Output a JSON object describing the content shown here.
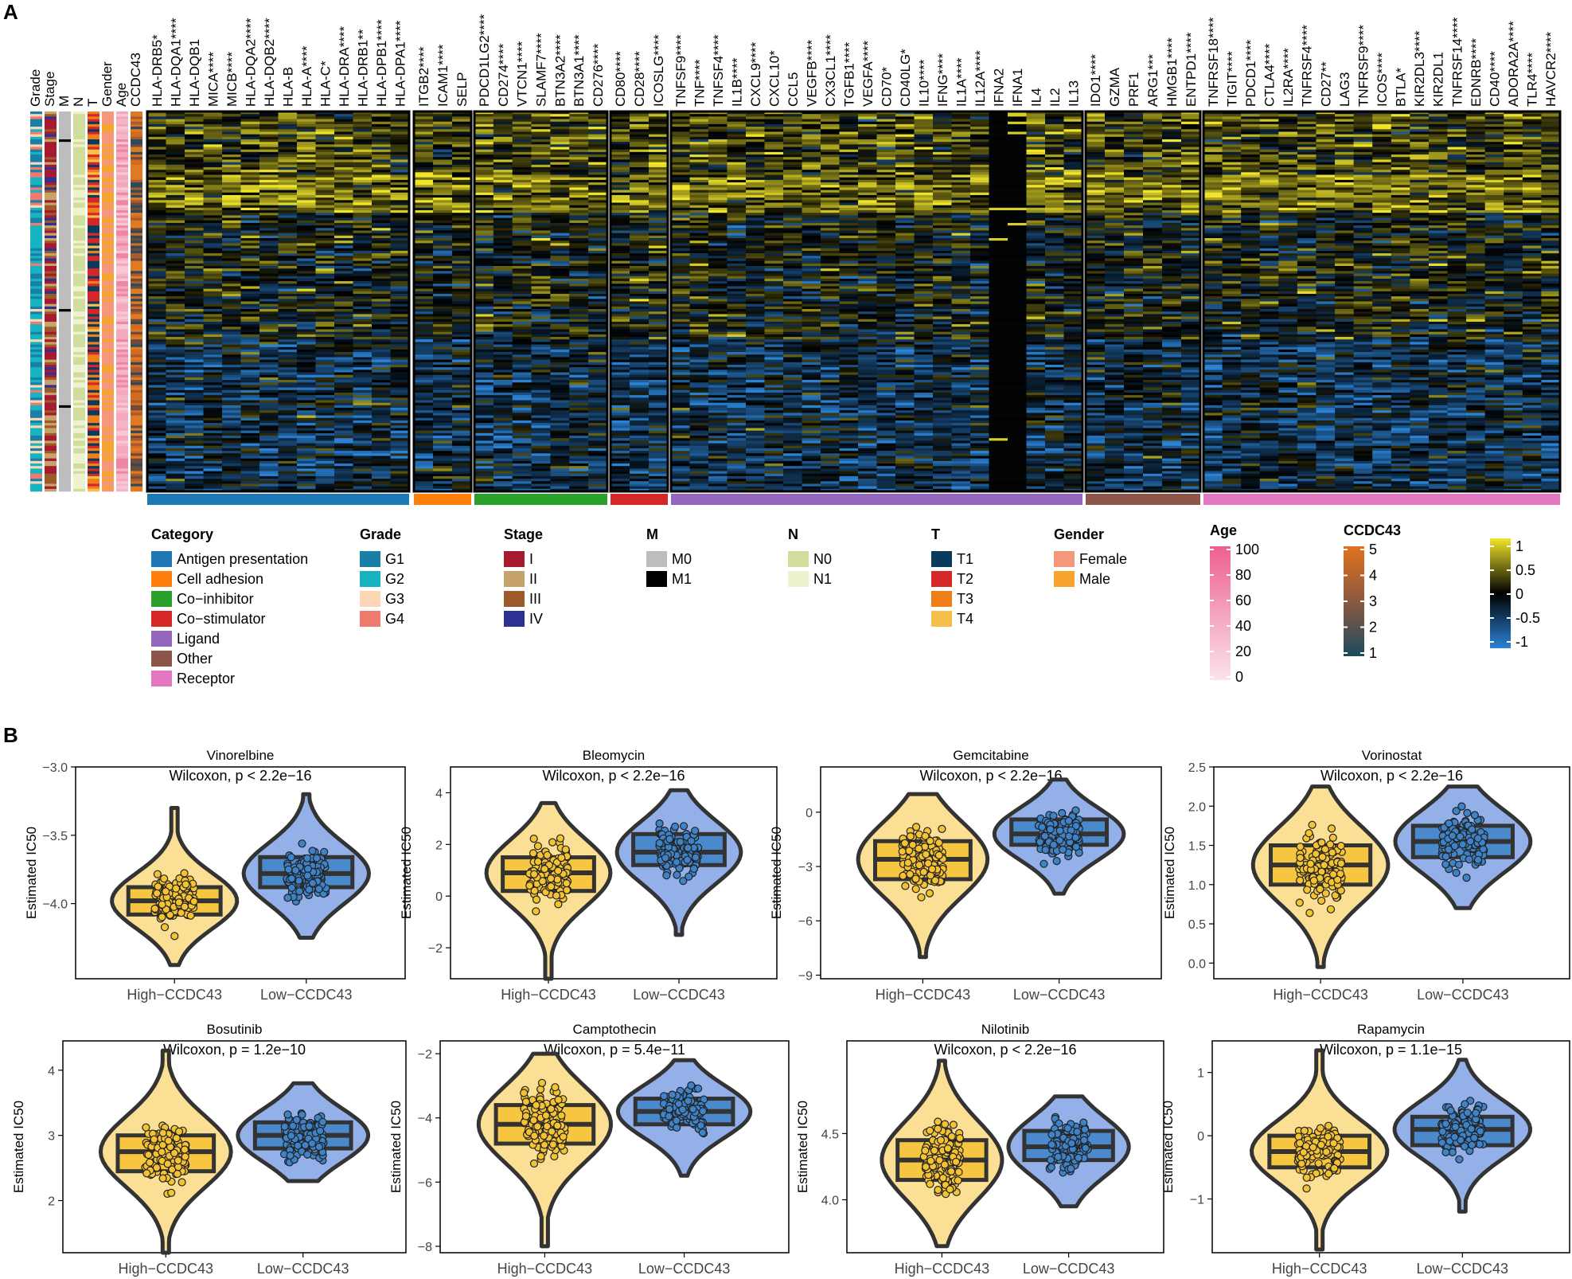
{
  "panels": {
    "a": "A",
    "b": "B"
  },
  "heatmap": {
    "annotation_tracks": [
      "Grade",
      "Stage",
      "M",
      "N",
      "T",
      "Gender",
      "Age",
      "CCDC43"
    ],
    "groups": [
      {
        "category": "Antigen presentation",
        "color": "#1f77b4",
        "genes": [
          "HLA-DRB5*",
          "HLA-DQA1****",
          "HLA-DQB1",
          "MICA****",
          "MICB****",
          "HLA-DQA2****",
          "HLA-DQB2****",
          "HLA-B",
          "HLA-A****",
          "HLA-C*",
          "HLA-DRA****",
          "HLA-DRB1**",
          "HLA-DPB1****",
          "HLA-DPA1****"
        ]
      },
      {
        "category": "Cell adhesion",
        "color": "#ff7f0e",
        "genes": [
          "ITGB2****",
          "ICAM1****",
          "SELP"
        ]
      },
      {
        "category": "Co-inhibitor",
        "color": "#2ca02c",
        "genes": [
          "PDCD1LG2****",
          "CD274****",
          "VTCN1****",
          "SLAMF7****",
          "BTN3A2****",
          "BTN3A1****",
          "CD276****"
        ]
      },
      {
        "category": "Co-stimulator",
        "color": "#d62728",
        "genes": [
          "CD80****",
          "CD28****",
          "ICOSLG****"
        ]
      },
      {
        "category": "Ligand",
        "color": "#9467bd",
        "genes": [
          "TNFSF9****",
          "TNF****",
          "TNFSF4****",
          "IL1B****",
          "CXCL9****",
          "CXCL10*",
          "CCL5",
          "VEGFB****",
          "CX3CL1****",
          "TGFB1****",
          "VEGFA****",
          "CD70*",
          "CD40LG*",
          "IL10****",
          "IFNG****",
          "IL1A****",
          "IL12A****",
          "IFNA2",
          "IFNA1",
          "IL4",
          "IL2",
          "IL13"
        ]
      },
      {
        "category": "Other",
        "color": "#8c564b",
        "genes": [
          "IDO1****",
          "GZMA",
          "PRF1",
          "ARG1***",
          "HMGB1****",
          "ENTPD1****"
        ]
      },
      {
        "category": "Receptor",
        "color": "#e377c2",
        "genes": [
          "TNFRSF18****",
          "TIGIT****",
          "PDCD1****",
          "CTLA4****",
          "IL2RA****",
          "TNFRSF4****",
          "CD27**",
          "LAG3",
          "TNFRSF9****",
          "ICOS****",
          "BTLA*",
          "KIR2DL3****",
          "KIR2DL1",
          "TNFRSF14****",
          "EDNRB****",
          "CD40****",
          "ADORA2A****",
          "TLR4****",
          "HAVCR2****"
        ]
      }
    ],
    "value_scale": {
      "ticks": [
        "1",
        "0.5",
        "0",
        "-0.5",
        "-1"
      ],
      "colors": [
        "#2b83d6",
        "#000000",
        "#f0e52b"
      ]
    }
  },
  "legends": {
    "category": {
      "title": "Category",
      "items": [
        {
          "label": "Antigen presentation",
          "color": "#1f77b4"
        },
        {
          "label": "Cell adhesion",
          "color": "#ff7f0e"
        },
        {
          "label": "Co−inhibitor",
          "color": "#2ca02c"
        },
        {
          "label": "Co−stimulator",
          "color": "#d62728"
        },
        {
          "label": "Ligand",
          "color": "#9467bd"
        },
        {
          "label": "Other",
          "color": "#8c564b"
        },
        {
          "label": "Receptor",
          "color": "#e377c2"
        }
      ]
    },
    "grade": {
      "title": "Grade",
      "items": [
        {
          "label": "G1",
          "color": "#1a7fa6"
        },
        {
          "label": "G2",
          "color": "#17b3c1"
        },
        {
          "label": "G3",
          "color": "#fdd6b5"
        },
        {
          "label": "G4",
          "color": "#ef7b6e"
        }
      ]
    },
    "stage": {
      "title": "Stage",
      "items": [
        {
          "label": "I",
          "color": "#a6192e"
        },
        {
          "label": "II",
          "color": "#c8a26b"
        },
        {
          "label": "III",
          "color": "#9c5a2a"
        },
        {
          "label": "IV",
          "color": "#2e3192"
        }
      ]
    },
    "m": {
      "title": "M",
      "items": [
        {
          "label": "M0",
          "color": "#bdbdbd"
        },
        {
          "label": "M1",
          "color": "#000000"
        }
      ]
    },
    "n": {
      "title": "N",
      "items": [
        {
          "label": "N0",
          "color": "#d1dd9a"
        },
        {
          "label": "N1",
          "color": "#eef2cf"
        }
      ]
    },
    "t": {
      "title": "T",
      "items": [
        {
          "label": "T1",
          "color": "#0b3a5c"
        },
        {
          "label": "T2",
          "color": "#d62728"
        },
        {
          "label": "T3",
          "color": "#f07f1a"
        },
        {
          "label": "T4",
          "color": "#f5c04a"
        }
      ]
    },
    "gender": {
      "title": "Gender",
      "items": [
        {
          "label": "Female",
          "color": "#f5977a"
        },
        {
          "label": "Male",
          "color": "#f7a42e"
        }
      ]
    },
    "age": {
      "title": "Age",
      "ticks": [
        "100",
        "80",
        "60",
        "40",
        "20",
        "0"
      ]
    },
    "ccdc43": {
      "title": "CCDC43",
      "ticks": [
        "5",
        "4",
        "3",
        "2",
        "1"
      ]
    }
  },
  "chart_data": [
    {
      "type": "violin",
      "title": "Vinorelbine",
      "annotation": "Wilcoxon, p < 2.2e−16",
      "ylabel": "Estimated IC50",
      "xlabel": "",
      "categories": [
        "High−CCDC43",
        "Low−CCDC43"
      ],
      "ylim": [
        -4.55,
        -3.0
      ],
      "yticks": [
        -3.0,
        -3.5,
        -4.0
      ],
      "ytick_labels": [
        "−3.0",
        "−3.5",
        "−4.0"
      ],
      "series": [
        {
          "name": "High−CCDC43",
          "color": "#f5c232",
          "min": -4.45,
          "q1": -4.08,
          "median": -3.98,
          "q3": -3.88,
          "max": -3.3
        },
        {
          "name": "Low−CCDC43",
          "color": "#3e82c8",
          "min": -4.25,
          "q1": -3.88,
          "median": -3.78,
          "q3": -3.66,
          "max": -3.2
        }
      ]
    },
    {
      "type": "violin",
      "title": "Bleomycin",
      "annotation": "Wilcoxon, p < 2.2e−16",
      "ylabel": "Estimated IC50",
      "xlabel": "",
      "categories": [
        "High−CCDC43",
        "Low−CCDC43"
      ],
      "ylim": [
        -3.2,
        5.0
      ],
      "yticks": [
        4,
        2,
        0,
        -2
      ],
      "ytick_labels": [
        "4",
        "2",
        "0",
        "−2"
      ],
      "series": [
        {
          "name": "High−CCDC43",
          "color": "#f5c232",
          "min": -3.2,
          "q1": 0.2,
          "median": 0.9,
          "q3": 1.5,
          "max": 3.6
        },
        {
          "name": "Low−CCDC43",
          "color": "#3e82c8",
          "min": -1.5,
          "q1": 1.2,
          "median": 1.7,
          "q3": 2.4,
          "max": 4.1
        }
      ]
    },
    {
      "type": "violin",
      "title": "Gemcitabine",
      "annotation": "Wilcoxon, p < 2.2e−16",
      "ylabel": "Estimated IC50",
      "xlabel": "",
      "categories": [
        "High−CCDC43",
        "Low−CCDC43"
      ],
      "ylim": [
        -9.2,
        2.5
      ],
      "yticks": [
        0,
        -3,
        -6,
        -9
      ],
      "ytick_labels": [
        "0",
        "−3",
        "−6",
        "−9"
      ],
      "series": [
        {
          "name": "High−CCDC43",
          "color": "#f5c232",
          "min": -8.0,
          "q1": -3.7,
          "median": -2.6,
          "q3": -1.6,
          "max": 1.0
        },
        {
          "name": "Low−CCDC43",
          "color": "#3e82c8",
          "min": -4.5,
          "q1": -1.8,
          "median": -1.2,
          "q3": -0.4,
          "max": 1.8
        }
      ]
    },
    {
      "type": "violin",
      "title": "Vorinostat",
      "annotation": "Wilcoxon, p < 2.2e−16",
      "ylabel": "Estimated IC50",
      "xlabel": "",
      "categories": [
        "High−CCDC43",
        "Low−CCDC43"
      ],
      "ylim": [
        -0.2,
        2.5
      ],
      "yticks": [
        2.5,
        2.0,
        1.5,
        1.0,
        0.5,
        0.0
      ],
      "ytick_labels": [
        "2.5",
        "2.0",
        "1.5",
        "1.0",
        "0.5",
        "0.0"
      ],
      "series": [
        {
          "name": "High−CCDC43",
          "color": "#f5c232",
          "min": -0.05,
          "q1": 1.0,
          "median": 1.25,
          "q3": 1.5,
          "max": 2.25
        },
        {
          "name": "Low−CCDC43",
          "color": "#3e82c8",
          "min": 0.7,
          "q1": 1.35,
          "median": 1.55,
          "q3": 1.75,
          "max": 2.25
        }
      ]
    },
    {
      "type": "violin",
      "title": "Bosutinib",
      "annotation": "Wilcoxon, p = 1.2e−10",
      "ylabel": "Estimated IC50",
      "xlabel": "",
      "categories": [
        "High−CCDC43",
        "Low−CCDC43"
      ],
      "ylim": [
        1.2,
        4.45
      ],
      "yticks": [
        4,
        3,
        2
      ],
      "ytick_labels": [
        "4",
        "3",
        "2"
      ],
      "series": [
        {
          "name": "High−CCDC43",
          "color": "#f5c232",
          "min": 1.2,
          "q1": 2.45,
          "median": 2.75,
          "q3": 3.0,
          "max": 4.3
        },
        {
          "name": "Low−CCDC43",
          "color": "#3e82c8",
          "min": 2.3,
          "q1": 2.8,
          "median": 3.0,
          "q3": 3.2,
          "max": 3.8
        }
      ]
    },
    {
      "type": "violin",
      "title": "Camptothecin",
      "annotation": "Wilcoxon, p = 5.4e−11",
      "ylabel": "Estimated IC50",
      "xlabel": "",
      "categories": [
        "High−CCDC43",
        "Low−CCDC43"
      ],
      "ylim": [
        -8.2,
        -1.6
      ],
      "yticks": [
        -2,
        -4,
        -6,
        -8
      ],
      "ytick_labels": [
        "−2",
        "−4",
        "−6",
        "−8"
      ],
      "series": [
        {
          "name": "High−CCDC43",
          "color": "#f5c232",
          "min": -8.0,
          "q1": -4.8,
          "median": -4.2,
          "q3": -3.6,
          "max": -2.0
        },
        {
          "name": "Low−CCDC43",
          "color": "#3e82c8",
          "min": -5.8,
          "q1": -4.2,
          "median": -3.8,
          "q3": -3.4,
          "max": -2.2
        }
      ]
    },
    {
      "type": "violin",
      "title": "Nilotinib",
      "annotation": "Wilcoxon, p < 2.2e−16",
      "ylabel": "Estimated IC50",
      "xlabel": "",
      "categories": [
        "High−CCDC43",
        "Low−CCDC43"
      ],
      "ylim": [
        3.6,
        5.2
      ],
      "yticks": [
        4.5,
        4.0
      ],
      "ytick_labels": [
        "4.5",
        "4.0"
      ],
      "series": [
        {
          "name": "High−CCDC43",
          "color": "#f5c232",
          "min": 3.65,
          "q1": 4.15,
          "median": 4.3,
          "q3": 4.45,
          "max": 5.05
        },
        {
          "name": "Low−CCDC43",
          "color": "#3e82c8",
          "min": 3.95,
          "q1": 4.3,
          "median": 4.4,
          "q3": 4.52,
          "max": 4.78
        }
      ]
    },
    {
      "type": "violin",
      "title": "Rapamycin",
      "annotation": "Wilcoxon, p = 1.1e−15",
      "ylabel": "Estimated IC50",
      "xlabel": "",
      "categories": [
        "High−CCDC43",
        "Low−CCDC43"
      ],
      "ylim": [
        -1.85,
        1.5
      ],
      "yticks": [
        1,
        0,
        -1
      ],
      "ytick_labels": [
        "1",
        "0",
        "−1"
      ],
      "series": [
        {
          "name": "High−CCDC43",
          "color": "#f5c232",
          "min": -1.8,
          "q1": -0.5,
          "median": -0.25,
          "q3": 0.0,
          "max": 1.35
        },
        {
          "name": "Low−CCDC43",
          "color": "#3e82c8",
          "min": -1.2,
          "q1": -0.15,
          "median": 0.1,
          "q3": 0.3,
          "max": 1.2
        }
      ]
    }
  ]
}
